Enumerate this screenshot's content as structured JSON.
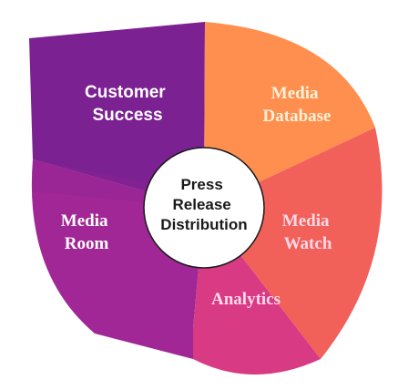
{
  "diagram": {
    "center": {
      "lines": [
        "Press",
        "Release",
        "Distribution"
      ],
      "fill": "#ffffff",
      "stroke": "#1a1a1a"
    },
    "segments": [
      {
        "id": "customer-success",
        "lines": [
          "Customer",
          "Success"
        ],
        "color": "#7B2191",
        "text_color": "#ffffff"
      },
      {
        "id": "media-database",
        "lines": [
          "Media",
          "Database"
        ],
        "color": "#FF8F4F",
        "text_color": "#FFF2D8"
      },
      {
        "id": "media-watch",
        "lines": [
          "Media",
          "Watch"
        ],
        "color": "#F2605A",
        "text_color": "#FFD9E6"
      },
      {
        "id": "analytics",
        "lines": [
          "Analytics"
        ],
        "color": "#D83A83",
        "text_color": "#FFD9EC"
      },
      {
        "id": "media-room",
        "lines": [
          "Media",
          "Room"
        ],
        "color": "#A02795",
        "text_color": "#ffffff"
      }
    ]
  }
}
